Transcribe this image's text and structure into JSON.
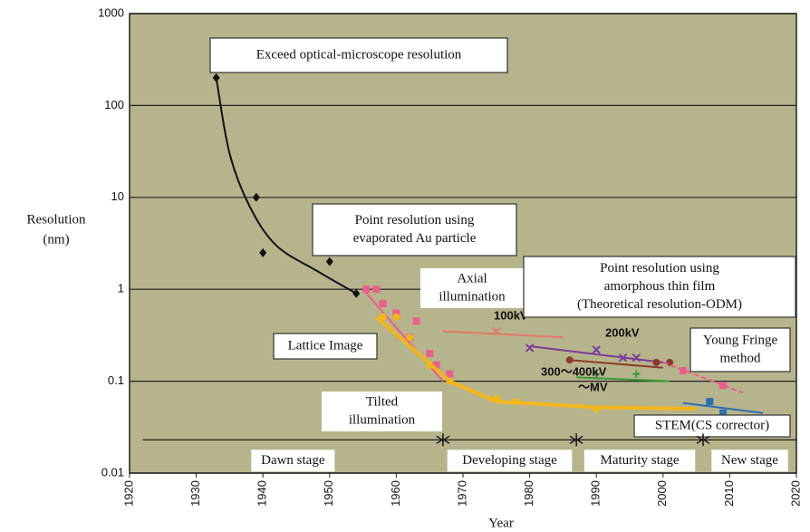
{
  "chart_data": {
    "type": "scatter",
    "log_y": true,
    "xlabel": "Year",
    "ylabel_lines": [
      "Resolution",
      "(nm)"
    ],
    "xlim": [
      1920,
      2020
    ],
    "xticks": [
      1920,
      1930,
      1940,
      1950,
      1960,
      1970,
      1980,
      1990,
      2000,
      2010,
      2020
    ],
    "ylim": [
      0.01,
      1000
    ],
    "yticks": [
      0.01,
      0.1,
      1,
      10,
      100,
      1000
    ],
    "grid": true,
    "background": "#b6b48c",
    "series": [
      {
        "color": "#111111",
        "marker": "diamond",
        "smooth": true,
        "x": [
          1933,
          1939,
          1940,
          1950,
          1954
        ],
        "values": [
          200,
          10,
          2.5,
          2,
          0.9
        ],
        "fit": {
          "x": [
            1933,
            1935,
            1938,
            1942,
            1948,
            1954
          ],
          "values": [
            200,
            30,
            8,
            3,
            1.6,
            0.9
          ]
        }
      },
      {
        "color": "#e8608a",
        "marker": "square",
        "x": [
          1955.5,
          1957,
          1958,
          1960,
          1962,
          1963,
          1965,
          1966,
          1968
        ],
        "values": [
          1,
          1,
          0.7,
          0.55,
          0.3,
          0.45,
          0.2,
          0.15,
          0.12
        ],
        "fit": {
          "x": [
            1955,
            1967
          ],
          "values": [
            1,
            0.1
          ]
        }
      },
      {
        "color": "#f2b61c",
        "marker": "circle",
        "width": 4,
        "x": [
          1958,
          1960,
          1962,
          1965,
          1968,
          1975,
          1978,
          1990
        ],
        "values": [
          0.5,
          0.5,
          0.3,
          0.15,
          0.1,
          0.065,
          0.06,
          0.05
        ],
        "fit": {
          "x": [
            1957,
            1968,
            1975,
            1990,
            2005
          ],
          "values": [
            0.5,
            0.1,
            0.06,
            0.052,
            0.05
          ]
        }
      },
      {
        "name": "100kV",
        "color": "#e07a6a",
        "marker": "x",
        "x": [
          1975
        ],
        "values": [
          0.35
        ],
        "fit": {
          "x": [
            1967,
            1985
          ],
          "values": [
            0.35,
            0.3
          ]
        }
      },
      {
        "name": "200kV",
        "color": "#7a3c9a",
        "marker": "x",
        "x": [
          1980,
          1990,
          1994,
          1996
        ],
        "values": [
          0.23,
          0.22,
          0.18,
          0.18
        ],
        "fit": {
          "x": [
            1980,
            2000
          ],
          "values": [
            0.24,
            0.16
          ]
        }
      },
      {
        "name": "300～400kV",
        "color": "#8a3c2c",
        "marker": "circle",
        "x": [
          1986,
          1999,
          2001
        ],
        "values": [
          0.17,
          0.16,
          0.16
        ],
        "fit": {
          "x": [
            1986,
            2000
          ],
          "values": [
            0.17,
            0.14
          ]
        }
      },
      {
        "name": "～MV",
        "color": "#3a9a3a",
        "marker": "plus",
        "x": [
          1990,
          1996
        ],
        "values": [
          0.12,
          0.12
        ],
        "fit": {
          "x": [
            1987,
            2001
          ],
          "values": [
            0.11,
            0.1
          ]
        }
      },
      {
        "color": "#e8608a",
        "marker": "square",
        "dashed": true,
        "x": [
          2003,
          2009
        ],
        "values": [
          0.13,
          0.09
        ],
        "fit": {
          "x": [
            2000,
            2012
          ],
          "values": [
            0.16,
            0.075
          ]
        }
      },
      {
        "color": "#2f6fb0",
        "marker": "square",
        "x": [
          2007,
          2009
        ],
        "values": [
          0.06,
          0.045
        ],
        "fit": {
          "x": [
            2003,
            2015
          ],
          "values": [
            0.058,
            0.045
          ]
        }
      }
    ],
    "annotations": [
      {
        "lines": [
          "Exceed optical-microscope resolution"
        ]
      },
      {
        "lines": [
          "Point resolution using",
          "evaporated Au particle"
        ]
      },
      {
        "lines": [
          "Axial",
          "illumination"
        ]
      },
      {
        "lines": [
          "Point resolution using",
          "amorphous thin film",
          "(Theoretical resolution-ODM)"
        ]
      },
      {
        "lines": [
          "Lattice Image"
        ]
      },
      {
        "lines": [
          "Tilted",
          "illumination"
        ]
      },
      {
        "lines": [
          "Young Fringe",
          "method"
        ]
      },
      {
        "lines": [
          "STEM(CS corrector)"
        ]
      }
    ],
    "stage_line_y": 0.023,
    "stages": [
      {
        "label": "Dawn stage",
        "start": 1922,
        "end": 1967
      },
      {
        "label": "Developing stage",
        "start": 1967,
        "end": 1987
      },
      {
        "label": "Maturity stage",
        "start": 1987,
        "end": 2006
      },
      {
        "label": "New stage",
        "start": 2006,
        "end": 2020
      }
    ]
  }
}
